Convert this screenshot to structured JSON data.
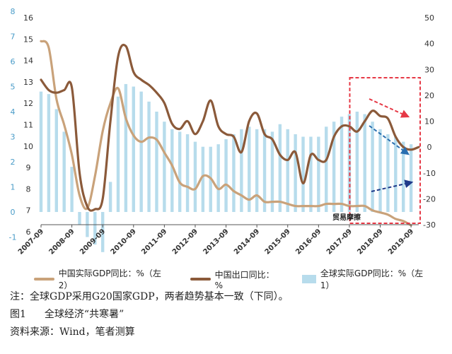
{
  "chart_data": {
    "type": "bar+line",
    "x_tick_labels": [
      "2007-09",
      "2008-09",
      "2009-09",
      "2010-09",
      "2011-09",
      "2012-09",
      "2013-09",
      "2014-09",
      "2015-09",
      "2016-09",
      "2017-09",
      "2018-09",
      "2019-09"
    ],
    "left_axis1_ticks": [
      "6",
      "7",
      "8",
      "9",
      "10",
      "11",
      "12",
      "13",
      "14",
      "15",
      "16"
    ],
    "left_axis1_range": [
      6,
      16
    ],
    "left_axis2_ticks": [
      "-1",
      "0",
      "1",
      "2",
      "3",
      "4",
      "5",
      "6",
      "7",
      "8"
    ],
    "left_axis2_range": [
      -1,
      8
    ],
    "right_axis_ticks": [
      "-30",
      "-20",
      "-10",
      "0",
      "10",
      "20",
      "30",
      "40",
      "50"
    ],
    "right_axis_range": [
      -30,
      50
    ],
    "x_range": [
      2007.75,
      2020.0
    ],
    "series": [
      {
        "name": "中国实际GDP同比：%（左2）",
        "kind": "line",
        "axis": "left1",
        "color": "#c9a27a",
        "points": [
          [
            2007.75,
            14.9
          ],
          [
            2008.0,
            14.6
          ],
          [
            2008.25,
            12.2
          ],
          [
            2008.5,
            11.0
          ],
          [
            2008.75,
            9.6
          ],
          [
            2009.0,
            7.7
          ],
          [
            2009.25,
            7.1
          ],
          [
            2009.5,
            8.6
          ],
          [
            2009.75,
            10.7
          ],
          [
            2010.0,
            12.0
          ],
          [
            2010.25,
            12.7
          ],
          [
            2010.5,
            11.3
          ],
          [
            2010.75,
            10.5
          ],
          [
            2011.0,
            10.2
          ],
          [
            2011.25,
            10.4
          ],
          [
            2011.5,
            10.3
          ],
          [
            2011.75,
            9.7
          ],
          [
            2012.0,
            9.1
          ],
          [
            2012.25,
            8.3
          ],
          [
            2012.5,
            8.1
          ],
          [
            2012.75,
            8.0
          ],
          [
            2013.0,
            8.6
          ],
          [
            2013.25,
            8.5
          ],
          [
            2013.5,
            8.0
          ],
          [
            2013.75,
            8.2
          ],
          [
            2014.0,
            7.9
          ],
          [
            2014.25,
            7.7
          ],
          [
            2014.5,
            7.5
          ],
          [
            2014.75,
            7.7
          ],
          [
            2015.0,
            7.4
          ],
          [
            2015.25,
            7.4
          ],
          [
            2015.5,
            7.4
          ],
          [
            2015.75,
            7.3
          ],
          [
            2016.0,
            7.2
          ],
          [
            2016.25,
            7.2
          ],
          [
            2016.5,
            7.2
          ],
          [
            2016.75,
            7.2
          ],
          [
            2017.0,
            7.3
          ],
          [
            2017.25,
            7.3
          ],
          [
            2017.5,
            7.3
          ],
          [
            2017.75,
            7.2
          ],
          [
            2018.0,
            7.2
          ],
          [
            2018.25,
            7.2
          ],
          [
            2018.5,
            7.0
          ],
          [
            2018.75,
            6.9
          ],
          [
            2019.0,
            6.8
          ],
          [
            2019.25,
            6.6
          ],
          [
            2019.5,
            6.5
          ],
          [
            2019.75,
            6.3
          ]
        ]
      },
      {
        "name": "中国出口同比：%",
        "kind": "line",
        "axis": "right",
        "color": "#8b5a3a",
        "points": [
          [
            2007.75,
            26
          ],
          [
            2008.0,
            22
          ],
          [
            2008.25,
            21
          ],
          [
            2008.5,
            22
          ],
          [
            2008.75,
            23
          ],
          [
            2009.0,
            -10
          ],
          [
            2009.25,
            -23
          ],
          [
            2009.5,
            -24
          ],
          [
            2009.75,
            -20
          ],
          [
            2010.0,
            10
          ],
          [
            2010.25,
            35
          ],
          [
            2010.5,
            39
          ],
          [
            2010.75,
            29
          ],
          [
            2011.0,
            26
          ],
          [
            2011.25,
            24
          ],
          [
            2011.5,
            21
          ],
          [
            2011.75,
            17
          ],
          [
            2012.0,
            9
          ],
          [
            2012.25,
            7
          ],
          [
            2012.5,
            10
          ],
          [
            2012.75,
            5
          ],
          [
            2013.0,
            10
          ],
          [
            2013.25,
            18
          ],
          [
            2013.5,
            8
          ],
          [
            2013.75,
            5
          ],
          [
            2014.0,
            4
          ],
          [
            2014.25,
            -2
          ],
          [
            2014.5,
            10
          ],
          [
            2014.75,
            13
          ],
          [
            2015.0,
            5
          ],
          [
            2015.25,
            3
          ],
          [
            2015.5,
            -3
          ],
          [
            2015.75,
            -5
          ],
          [
            2016.0,
            -2
          ],
          [
            2016.25,
            -14
          ],
          [
            2016.5,
            -3
          ],
          [
            2016.75,
            -5
          ],
          [
            2017.0,
            -5
          ],
          [
            2017.25,
            4
          ],
          [
            2017.5,
            8
          ],
          [
            2017.75,
            8
          ],
          [
            2018.0,
            6
          ],
          [
            2018.25,
            10
          ],
          [
            2018.5,
            14
          ],
          [
            2018.75,
            12
          ],
          [
            2019.0,
            11
          ],
          [
            2019.25,
            4
          ],
          [
            2019.5,
            0
          ],
          [
            2019.75,
            -1
          ],
          [
            2020.0,
            0
          ]
        ]
      },
      {
        "name": "全球实际GDP同比：%（左1）",
        "kind": "bar",
        "axis": "left2",
        "color": "#b7dcec",
        "points": [
          [
            2007.75,
            4.8
          ],
          [
            2008.0,
            4.7
          ],
          [
            2008.25,
            4.1
          ],
          [
            2008.5,
            3.2
          ],
          [
            2008.75,
            1.8
          ],
          [
            2009.0,
            -0.5
          ],
          [
            2009.25,
            -1.0
          ],
          [
            2009.5,
            -1.3
          ],
          [
            2009.75,
            -1.6
          ],
          [
            2010.0,
            1.2
          ],
          [
            2010.25,
            4.6
          ],
          [
            2010.5,
            5.1
          ],
          [
            2010.75,
            5.0
          ],
          [
            2011.0,
            4.8
          ],
          [
            2011.25,
            4.4
          ],
          [
            2011.5,
            4.0
          ],
          [
            2011.75,
            3.6
          ],
          [
            2012.0,
            3.3
          ],
          [
            2012.25,
            3.2
          ],
          [
            2012.5,
            3.1
          ],
          [
            2012.75,
            2.8
          ],
          [
            2013.0,
            2.6
          ],
          [
            2013.25,
            2.6
          ],
          [
            2013.5,
            2.7
          ],
          [
            2013.75,
            2.9
          ],
          [
            2014.0,
            3.1
          ],
          [
            2014.25,
            3.3
          ],
          [
            2014.5,
            3.4
          ],
          [
            2014.75,
            3.3
          ],
          [
            2015.0,
            3.3
          ],
          [
            2015.25,
            3.2
          ],
          [
            2015.5,
            3.5
          ],
          [
            2015.75,
            3.3
          ],
          [
            2016.0,
            3.1
          ],
          [
            2016.25,
            3.0
          ],
          [
            2016.5,
            3.0
          ],
          [
            2016.75,
            3.0
          ],
          [
            2017.0,
            3.4
          ],
          [
            2017.25,
            3.6
          ],
          [
            2017.5,
            3.8
          ],
          [
            2017.75,
            3.9
          ],
          [
            2018.0,
            4.0
          ],
          [
            2018.25,
            3.9
          ],
          [
            2018.5,
            3.6
          ],
          [
            2018.75,
            3.3
          ],
          [
            2019.0,
            3.1
          ],
          [
            2019.25,
            3.0
          ],
          [
            2019.5,
            2.8
          ],
          [
            2019.75,
            2.7
          ]
        ]
      }
    ],
    "annotation_text": "贸易摩擦",
    "highlight_box": {
      "x_from": 2017.9,
      "x_to": 2020.0
    },
    "arrow_colors": [
      "#e63946",
      "#2a6fb0",
      "#1f3a8a"
    ],
    "highlight_color": "#e63946"
  },
  "legend": {
    "gdp_china_label": "中国实际GDP同比：%（左2）",
    "export_label": "中国出口同比：%",
    "gdp_world_label": "全球实际GDP同比：%（左1）"
  },
  "notes": {
    "note_line": "注：全球GDP采用G20国家GDP，两者趋势基本一致（下同）。",
    "figure_no": "图1",
    "figure_title": "全球经济“共寒暑”",
    "source_line": "资料来源：Wind，笔者测算"
  }
}
